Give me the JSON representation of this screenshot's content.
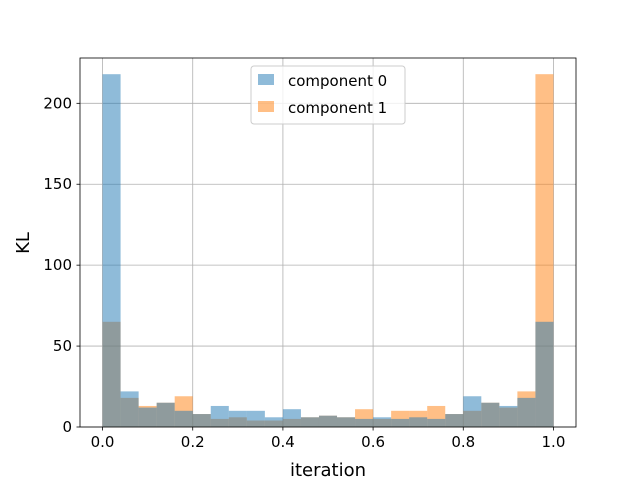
{
  "chart_data": {
    "type": "bar",
    "subtype": "overlapping-histogram",
    "title": "",
    "xlabel": "iteration",
    "ylabel": "KL",
    "xlim": [
      -0.05,
      1.05
    ],
    "ylim": [
      0,
      228
    ],
    "xticks": [
      0.0,
      0.2,
      0.4,
      0.6,
      0.8,
      1.0
    ],
    "xtick_labels": [
      "0.0",
      "0.2",
      "0.4",
      "0.6",
      "0.8",
      "1.0"
    ],
    "yticks": [
      0,
      50,
      100,
      150,
      200
    ],
    "ytick_labels": [
      "0",
      "50",
      "100",
      "150",
      "200"
    ],
    "grid": true,
    "legend_position": "top-center",
    "bin_edges": [
      0.0,
      0.04,
      0.08,
      0.12,
      0.16,
      0.2,
      0.24,
      0.28,
      0.32,
      0.36,
      0.4,
      0.44,
      0.48,
      0.52,
      0.56,
      0.6,
      0.64,
      0.68,
      0.72,
      0.76,
      0.8,
      0.84,
      0.88,
      0.92,
      0.96,
      1.0
    ],
    "series": [
      {
        "name": "component 0",
        "color": "#1f77b4",
        "alpha": 0.5,
        "values": [
          218,
          22,
          12,
          15,
          10,
          8,
          13,
          10,
          10,
          6,
          11,
          6,
          7,
          6,
          5,
          6,
          5,
          6,
          5,
          8,
          19,
          15,
          13,
          18,
          65
        ]
      },
      {
        "name": "component 1",
        "color": "#ff7f0e",
        "alpha": 0.5,
        "values": [
          65,
          18,
          13,
          15,
          19,
          8,
          5,
          6,
          4,
          4,
          5,
          6,
          7,
          6,
          11,
          5,
          10,
          10,
          13,
          8,
          10,
          15,
          12,
          22,
          218
        ]
      }
    ]
  }
}
